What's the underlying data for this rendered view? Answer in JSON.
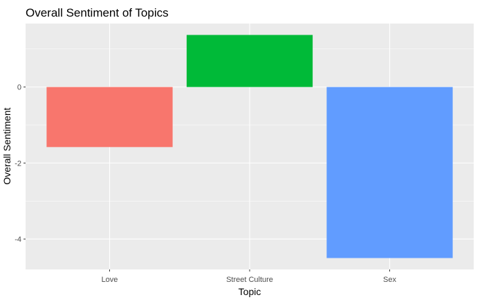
{
  "chart_data": {
    "type": "bar",
    "title": "Overall Sentiment of Topics",
    "xlabel": "Topic",
    "ylabel": "Overall Sentiment",
    "categories": [
      "Love",
      "Street Culture",
      "Sex"
    ],
    "values": [
      -1.58,
      1.37,
      -4.5
    ],
    "colors": [
      "#F8766D",
      "#00BA38",
      "#619CFF"
    ],
    "ylim": [
      -4.8,
      1.67
    ],
    "y_ticks": [
      0,
      -2,
      -4
    ],
    "y_tick_labels": [
      "0",
      "-2",
      "-4"
    ],
    "panel_background": "#EBEBEB",
    "grid_color": "#FFFFFF",
    "grid": true,
    "legend": "none"
  }
}
